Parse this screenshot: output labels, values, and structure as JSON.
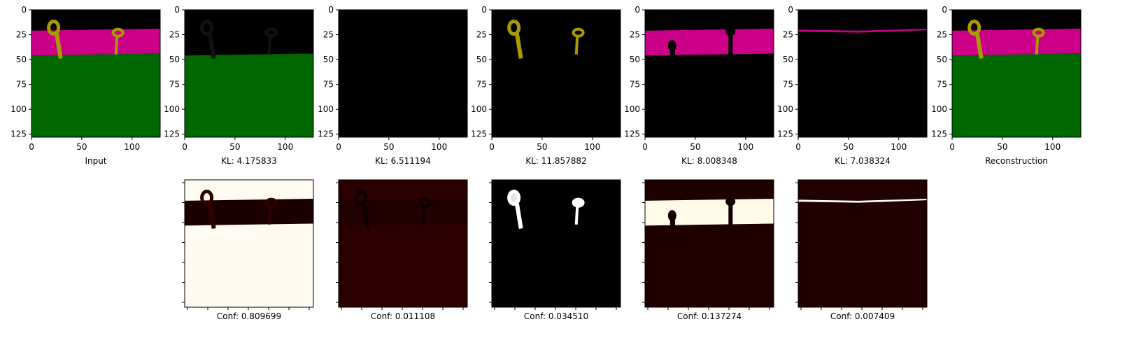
{
  "axes": {
    "xlim": [
      0,
      128
    ],
    "ylim": [
      128,
      0
    ],
    "xticks": [
      0,
      50,
      100
    ],
    "yticks": [
      0,
      25,
      50,
      75,
      100,
      125
    ]
  },
  "top_panels": [
    {
      "label": "Input"
    },
    {
      "label": "KL: 4.175833"
    },
    {
      "label": "KL: 6.511194"
    },
    {
      "label": "KL: 11.857882"
    },
    {
      "label": "KL: 8.008348"
    },
    {
      "label": "KL: 7.038324"
    },
    {
      "label": "Reconstruction"
    }
  ],
  "bottom_panels": [
    {
      "label": "Conf: 0.809699"
    },
    {
      "label": "Conf: 0.011108"
    },
    {
      "label": "Conf: 0.034510"
    },
    {
      "label": "Conf: 0.137274"
    },
    {
      "label": "Conf: 0.007409"
    }
  ]
}
